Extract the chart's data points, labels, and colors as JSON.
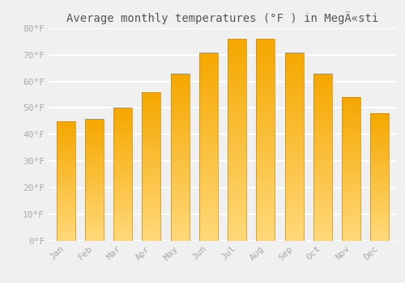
{
  "title": "Average monthly temperatures (°F ) in MegÄ«sti",
  "months": [
    "Jan",
    "Feb",
    "Mar",
    "Apr",
    "May",
    "Jun",
    "Jul",
    "Aug",
    "Sep",
    "Oct",
    "Nov",
    "Dec"
  ],
  "values": [
    45,
    46,
    50,
    56,
    63,
    71,
    76,
    76,
    71,
    63,
    54,
    48
  ],
  "bar_color_top": "#F5A800",
  "bar_color_mid": "#FFC030",
  "bar_color_bottom": "#FFD878",
  "bar_edge_color": "#CC8800",
  "background_color": "#F0F0F0",
  "grid_color": "#FFFFFF",
  "ylim": [
    0,
    80
  ],
  "yticks": [
    0,
    10,
    20,
    30,
    40,
    50,
    60,
    70,
    80
  ],
  "ytick_labels": [
    "0°F",
    "10°F",
    "20°F",
    "30°F",
    "40°F",
    "50°F",
    "60°F",
    "70°F",
    "80°F"
  ],
  "tick_color": "#AAAAAA",
  "title_fontsize": 10,
  "tick_fontsize": 8,
  "bar_width": 0.65
}
